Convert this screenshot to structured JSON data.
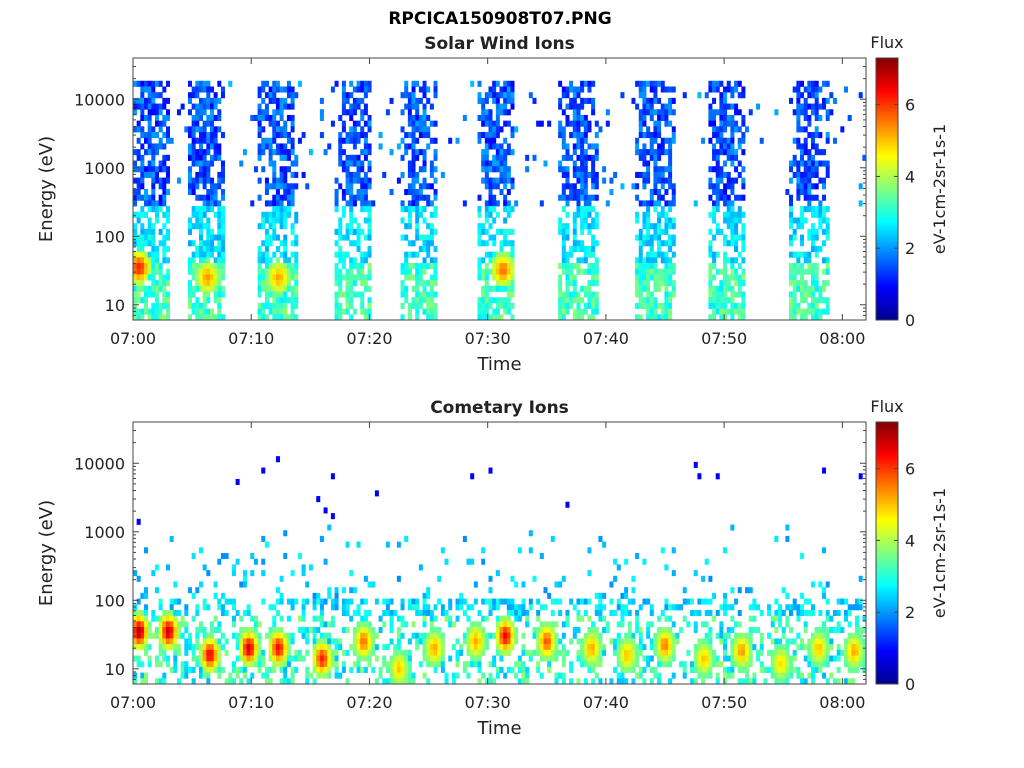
{
  "figure_title": "RPCICA150908T07.PNG",
  "x_ticks": [
    "07:00",
    "07:10",
    "07:20",
    "07:30",
    "07:40",
    "07:50",
    "08:00"
  ],
  "chart_data": [
    {
      "type": "heatmap",
      "title": "Solar Wind Ions",
      "xlabel": "Time",
      "ylabel": "Energy (eV)",
      "x_range": [
        "07:00",
        "08:02"
      ],
      "y_range_ev": [
        6,
        40000
      ],
      "y_scale": "log",
      "y_ticks": [
        "10",
        "100",
        "1000",
        "10000"
      ],
      "colorbar": {
        "label": "Flux",
        "unit": "eV-1cm-2sr-1s-1",
        "range": [
          0,
          7.3
        ],
        "ticks": [
          "0",
          "2",
          "4",
          "6"
        ],
        "colormap": "jet"
      },
      "sweep_start_minutes": [
        0,
        4.6,
        10.6,
        17.1,
        22.6,
        29.1,
        36.1,
        42.6,
        48.6,
        55.6
      ],
      "sweep_duration_minutes": 3.2,
      "low_energy_hot_spots": [
        {
          "minute": 0.5,
          "energy_ev": 35,
          "flux": 6.2
        },
        {
          "minute": 6.3,
          "energy_ev": 25,
          "flux": 5.3
        },
        {
          "minute": 12.3,
          "energy_ev": 25,
          "flux": 5.2
        },
        {
          "minute": 31.3,
          "energy_ev": 32,
          "flux": 5.6
        }
      ]
    },
    {
      "type": "heatmap",
      "title": "Cometary Ions",
      "xlabel": "Time",
      "ylabel": "Energy (eV)",
      "x_range": [
        "07:00",
        "08:02"
      ],
      "y_range_ev": [
        6,
        40000
      ],
      "y_scale": "log",
      "y_ticks": [
        "10",
        "100",
        "1000",
        "10000"
      ],
      "colorbar": {
        "label": "Flux",
        "unit": "eV-1cm-2sr-1s-1",
        "range": [
          0,
          7.3
        ],
        "ticks": [
          "0",
          "2",
          "4",
          "6"
        ],
        "colormap": "jet"
      },
      "peaks": [
        {
          "minute": 0.5,
          "energy_ev": 35,
          "flux": 7.0
        },
        {
          "minute": 3.0,
          "energy_ev": 35,
          "flux": 6.8
        },
        {
          "minute": 6.5,
          "energy_ev": 16,
          "flux": 6.5
        },
        {
          "minute": 9.8,
          "energy_ev": 20,
          "flux": 6.7
        },
        {
          "minute": 12.3,
          "energy_ev": 20,
          "flux": 6.4
        },
        {
          "minute": 16.0,
          "energy_ev": 14,
          "flux": 6.2
        },
        {
          "minute": 19.5,
          "energy_ev": 25,
          "flux": 5.6
        },
        {
          "minute": 22.5,
          "energy_ev": 10,
          "flux": 5.0
        },
        {
          "minute": 25.5,
          "energy_ev": 20,
          "flux": 5.2
        },
        {
          "minute": 29.0,
          "energy_ev": 25,
          "flux": 5.2
        },
        {
          "minute": 31.5,
          "energy_ev": 30,
          "flux": 6.5
        },
        {
          "minute": 35.0,
          "energy_ev": 25,
          "flux": 5.8
        },
        {
          "minute": 38.8,
          "energy_ev": 20,
          "flux": 5.2
        },
        {
          "minute": 41.8,
          "energy_ev": 16,
          "flux": 5.0
        },
        {
          "minute": 45.0,
          "energy_ev": 22,
          "flux": 5.5
        },
        {
          "minute": 48.3,
          "energy_ev": 14,
          "flux": 5.0
        },
        {
          "minute": 51.5,
          "energy_ev": 18,
          "flux": 5.3
        },
        {
          "minute": 54.8,
          "energy_ev": 12,
          "flux": 4.8
        },
        {
          "minute": 58.0,
          "energy_ev": 20,
          "flux": 5.0
        },
        {
          "minute": 61.0,
          "energy_ev": 18,
          "flux": 5.2
        }
      ]
    }
  ]
}
